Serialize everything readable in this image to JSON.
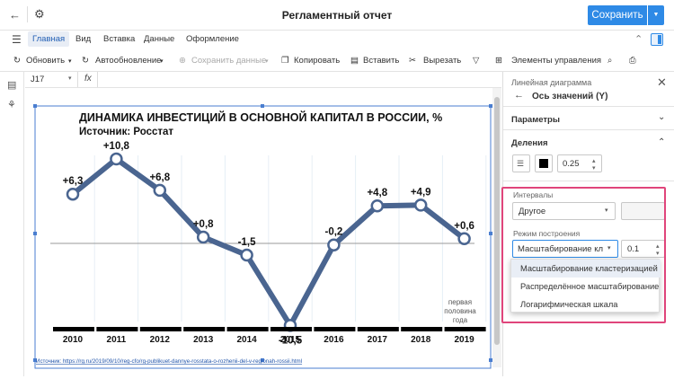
{
  "window": {
    "title": "Регламентный отчет",
    "save_label": "Сохранить"
  },
  "menu": {
    "items": [
      "Главная",
      "Вид",
      "Вставка",
      "Данные",
      "Оформление"
    ]
  },
  "toolbar": {
    "refresh": "Обновить",
    "autorefresh": "Автообновление",
    "save_data": "Сохранить данные",
    "copy": "Копировать",
    "paste": "Вставить",
    "cut": "Вырезать",
    "controls": "Элементы управления"
  },
  "formula": {
    "cell": "J17",
    "fx": "fx"
  },
  "chart_data": {
    "type": "line",
    "title": "ДИНАМИКА ИНВЕСТИЦИЙ В ОСНОВНОЙ КАПИТАЛ В РОССИИ, %",
    "subtitle": "Источник: Росстат",
    "categories": [
      "2010",
      "2011",
      "2012",
      "2013",
      "2014",
      "2015",
      "2016",
      "2017",
      "2018",
      "2019"
    ],
    "values": [
      6.3,
      10.8,
      6.8,
      0.8,
      -1.5,
      -10.5,
      -0.2,
      4.8,
      4.9,
      0.6
    ],
    "data_labels": [
      "+6,3",
      "+10,8",
      "+6,8",
      "+0,8",
      "-1,5",
      "-10,5",
      "-0,2",
      "+4,8",
      "+4,9",
      "+0,6"
    ],
    "annotation": [
      "первая",
      "половина",
      "года"
    ],
    "ylim": [
      -13,
      13
    ],
    "line_color": "#4a6590",
    "grid": false,
    "source": "Источник: https://rg.ru/2019/09/10/reg-cfo/rg-publikuet-dannye-rosstata-o-rozhenii-del-v-regionah-rossii.html"
  },
  "panel": {
    "header": "Линейная диаграмма",
    "title": "Ось значений (Y)",
    "params": "Параметры",
    "divisions": "Деления",
    "stroke_width": "0.25",
    "intervals_label": "Интервалы",
    "intervals_value": "Другое",
    "mode_label": "Режим построения",
    "mode_value": "Масштабирование кл",
    "step_value": "0.1",
    "options": [
      "Масштабирование кластеризацией",
      "Распределённое масштабирование",
      "Логарифмическая шкала"
    ]
  },
  "colors": {
    "accent": "#2e8ae6",
    "highlight": "#e0457b",
    "chart_line": "#4a6590"
  }
}
